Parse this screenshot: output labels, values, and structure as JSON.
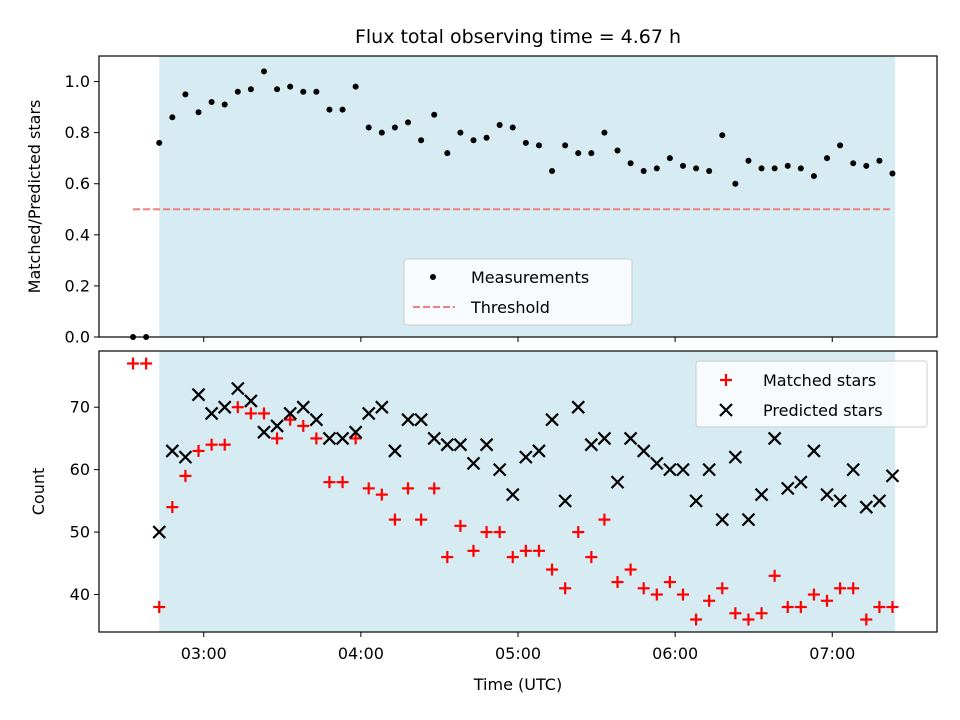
{
  "chart_data": [
    {
      "type": "scatter",
      "title": "Flux total observing time = 4.67 h",
      "xlabel": "",
      "ylabel": "Matched/Predicted stars",
      "ylim": [
        0,
        1.1
      ],
      "yticks": [
        "0.0",
        "0.2",
        "0.4",
        "0.6",
        "0.8",
        "1.0"
      ],
      "xlim": [
        "02:20",
        "07:40"
      ],
      "observing_window": [
        "02:43",
        "07:24"
      ],
      "legend": {
        "position": "lower-center",
        "entries": [
          "Measurements",
          "Threshold"
        ]
      },
      "threshold": {
        "name": "Threshold",
        "value": 0.5,
        "x_range": [
          "02:33",
          "07:23"
        ],
        "color": "#f08080"
      },
      "series": [
        {
          "name": "Measurements",
          "color": "#000000",
          "x": [
            "02:33",
            "02:38",
            "02:43",
            "02:48",
            "02:53",
            "02:58",
            "03:03",
            "03:08",
            "03:13",
            "03:18",
            "03:23",
            "03:28",
            "03:33",
            "03:38",
            "03:43",
            "03:48",
            "03:53",
            "03:58",
            "04:03",
            "04:08",
            "04:13",
            "04:18",
            "04:23",
            "04:28",
            "04:33",
            "04:38",
            "04:43",
            "04:48",
            "04:53",
            "04:58",
            "05:03",
            "05:08",
            "05:13",
            "05:18",
            "05:23",
            "05:28",
            "05:33",
            "05:38",
            "05:43",
            "05:48",
            "05:53",
            "05:58",
            "06:03",
            "06:08",
            "06:13",
            "06:18",
            "06:23",
            "06:28",
            "06:33",
            "06:38",
            "06:43",
            "06:48",
            "06:53",
            "06:58",
            "07:03",
            "07:08",
            "07:13",
            "07:18",
            "07:23"
          ],
          "y": [
            0.0,
            0.0,
            0.76,
            0.86,
            0.95,
            0.88,
            0.92,
            0.91,
            0.96,
            0.97,
            1.04,
            0.97,
            0.98,
            0.96,
            0.96,
            0.89,
            0.89,
            0.98,
            0.82,
            0.8,
            0.82,
            0.84,
            0.77,
            0.87,
            0.72,
            0.8,
            0.77,
            0.78,
            0.83,
            0.82,
            0.76,
            0.75,
            0.65,
            0.75,
            0.72,
            0.72,
            0.8,
            0.73,
            0.68,
            0.65,
            0.66,
            0.7,
            0.67,
            0.66,
            0.65,
            0.79,
            0.6,
            0.69,
            0.66,
            0.66,
            0.67,
            0.66,
            0.63,
            0.7,
            0.75,
            0.68,
            0.67,
            0.69,
            0.64
          ]
        }
      ]
    },
    {
      "type": "scatter",
      "title": "",
      "xlabel": "Time (UTC)",
      "ylabel": "Count",
      "ylim": [
        34,
        79
      ],
      "yticks": [
        "40",
        "50",
        "60",
        "70"
      ],
      "xticks": [
        "03:00",
        "04:00",
        "05:00",
        "06:00",
        "07:00"
      ],
      "xlim": [
        "02:20",
        "07:40"
      ],
      "observing_window": [
        "02:43",
        "07:24"
      ],
      "legend": {
        "position": "upper-right",
        "entries": [
          "Matched stars",
          "Predicted stars"
        ]
      },
      "series": [
        {
          "name": "Matched stars",
          "marker": "+",
          "color": "#ff0000",
          "x": [
            "02:33",
            "02:38",
            "02:43",
            "02:48",
            "02:53",
            "02:58",
            "03:03",
            "03:08",
            "03:13",
            "03:18",
            "03:23",
            "03:28",
            "03:33",
            "03:38",
            "03:43",
            "03:48",
            "03:53",
            "03:58",
            "04:03",
            "04:08",
            "04:13",
            "04:18",
            "04:23",
            "04:28",
            "04:33",
            "04:38",
            "04:43",
            "04:48",
            "04:53",
            "04:58",
            "05:03",
            "05:08",
            "05:13",
            "05:18",
            "05:23",
            "05:28",
            "05:33",
            "05:38",
            "05:43",
            "05:48",
            "05:53",
            "05:58",
            "06:03",
            "06:08",
            "06:13",
            "06:18",
            "06:23",
            "06:28",
            "06:33",
            "06:38",
            "06:43",
            "06:48",
            "06:53",
            "06:58",
            "07:03",
            "07:08",
            "07:13",
            "07:18",
            "07:23"
          ],
          "y": [
            77,
            77,
            38,
            54,
            59,
            63,
            64,
            64,
            70,
            69,
            69,
            65,
            68,
            67,
            65,
            58,
            58,
            65,
            57,
            56,
            52,
            57,
            52,
            57,
            46,
            51,
            47,
            50,
            50,
            46,
            47,
            47,
            44,
            41,
            50,
            46,
            52,
            42,
            44,
            41,
            40,
            42,
            40,
            36,
            39,
            41,
            37,
            36,
            37,
            43,
            38,
            38,
            40,
            39,
            41,
            41,
            36,
            38,
            38
          ]
        },
        {
          "name": "Predicted stars",
          "marker": "x",
          "color": "#000000",
          "x": [
            "02:43",
            "02:48",
            "02:53",
            "02:58",
            "03:03",
            "03:08",
            "03:13",
            "03:18",
            "03:23",
            "03:28",
            "03:33",
            "03:38",
            "03:43",
            "03:48",
            "03:53",
            "03:58",
            "04:03",
            "04:08",
            "04:13",
            "04:18",
            "04:23",
            "04:28",
            "04:33",
            "04:38",
            "04:43",
            "04:48",
            "04:53",
            "04:58",
            "05:03",
            "05:08",
            "05:13",
            "05:18",
            "05:23",
            "05:28",
            "05:33",
            "05:38",
            "05:43",
            "05:48",
            "05:53",
            "05:58",
            "06:03",
            "06:08",
            "06:13",
            "06:18",
            "06:23",
            "06:28",
            "06:33",
            "06:38",
            "06:43",
            "06:48",
            "06:53",
            "06:58",
            "07:03",
            "07:08",
            "07:13",
            "07:18",
            "07:23"
          ],
          "y": [
            50,
            63,
            62,
            72,
            69,
            70,
            73,
            71,
            66,
            67,
            69,
            70,
            68,
            65,
            65,
            66,
            69,
            70,
            63,
            68,
            68,
            65,
            64,
            64,
            61,
            64,
            60,
            56,
            62,
            63,
            68,
            55,
            70,
            64,
            65,
            58,
            65,
            63,
            61,
            60,
            60,
            55,
            60,
            52,
            62,
            52,
            56,
            65,
            57,
            58,
            63,
            56,
            55,
            60,
            54,
            55,
            59
          ]
        }
      ]
    }
  ]
}
